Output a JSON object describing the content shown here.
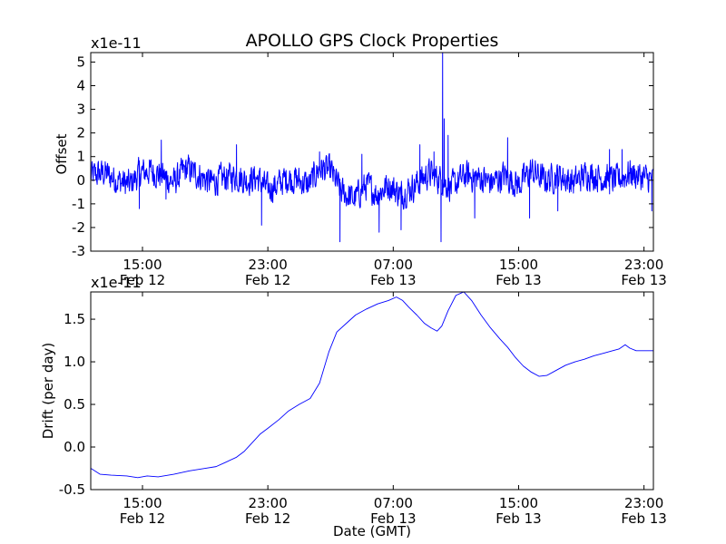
{
  "chart_data": {
    "type": "line",
    "title": "APOLLO GPS Clock Properties",
    "xlabel": "Date (GMT)",
    "x_ticks": [
      {
        "hour": 15,
        "time": "15:00",
        "date": "Feb 12"
      },
      {
        "hour": 23,
        "time": "23:00",
        "date": "Feb 12"
      },
      {
        "hour": 31,
        "time": "07:00",
        "date": "Feb 13"
      },
      {
        "hour": 39,
        "time": "15:00",
        "date": "Feb 13"
      },
      {
        "hour": 47,
        "time": "23:00",
        "date": "Feb 13"
      }
    ],
    "xlim": [
      11.7,
      47.6
    ],
    "panels": [
      {
        "name": "offset",
        "ylabel": "Offset",
        "scale_label": "x1e-11",
        "ylim": [
          -3,
          5.4
        ],
        "y_ticks": [
          -3,
          -2,
          -1,
          0,
          1,
          2,
          3,
          4,
          5
        ],
        "y_tick_labels": [
          "-3",
          "-2",
          "-1",
          "0",
          "1",
          "2",
          "3",
          "4",
          "5"
        ],
        "series": [
          {
            "name": "offset",
            "color": "#0000ff",
            "style": "noisy",
            "noise_amplitude": 0.55,
            "x": [
              11.7,
              12.6,
              13.4,
              14.2,
              14.8,
              15.5,
              16.3,
              17.0,
              17.8,
              18.6,
              19.4,
              20.2,
              20.9,
              21.6,
              22.3,
              23.0,
              23.6,
              24.2,
              24.9,
              25.6,
              26.3,
              27.0,
              27.7,
              28.5,
              29.3,
              30.0,
              30.7,
              31.5,
              32.4,
              33.3,
              34.1,
              34.7,
              35.6,
              36.5,
              37.3,
              38.1,
              39.0,
              39.8,
              40.7,
              41.6,
              42.5,
              43.4,
              44.3,
              45.2,
              46.1,
              47.0,
              47.6
            ],
            "y": [
              0.2,
              0.3,
              0.0,
              -0.2,
              0.3,
              0.4,
              0.2,
              -0.1,
              0.5,
              0.2,
              -0.1,
              0.1,
              0.2,
              0.0,
              0.1,
              -0.4,
              -0.2,
              0.1,
              0.0,
              -0.2,
              0.5,
              0.4,
              -0.5,
              -0.8,
              -0.2,
              -0.6,
              -0.2,
              -0.6,
              -0.2,
              0.3,
              0.0,
              -0.3,
              0.2,
              0.1,
              -0.1,
              0.2,
              -0.2,
              0.4,
              0.0,
              0.2,
              -0.1,
              0.3,
              0.1,
              0.0,
              0.3,
              0.1,
              0.0
            ],
            "spikes": [
              {
                "x": 14.8,
                "y": -1.2
              },
              {
                "x": 16.2,
                "y": 1.7
              },
              {
                "x": 16.5,
                "y": -0.8
              },
              {
                "x": 21.0,
                "y": 1.5
              },
              {
                "x": 22.6,
                "y": -1.9
              },
              {
                "x": 26.3,
                "y": 1.2
              },
              {
                "x": 27.6,
                "y": -2.6
              },
              {
                "x": 29.0,
                "y": 1.1
              },
              {
                "x": 30.1,
                "y": -2.2
              },
              {
                "x": 31.5,
                "y": -2.1
              },
              {
                "x": 32.7,
                "y": 1.5
              },
              {
                "x": 33.6,
                "y": 1.2
              },
              {
                "x": 34.05,
                "y": -2.6
              },
              {
                "x": 34.15,
                "y": 5.4
              },
              {
                "x": 34.25,
                "y": 2.6
              },
              {
                "x": 34.5,
                "y": 1.9
              },
              {
                "x": 36.2,
                "y": -1.6
              },
              {
                "x": 38.3,
                "y": 1.8
              },
              {
                "x": 39.7,
                "y": -1.6
              },
              {
                "x": 41.5,
                "y": -1.3
              },
              {
                "x": 44.8,
                "y": 1.3
              },
              {
                "x": 45.6,
                "y": 1.3
              },
              {
                "x": 47.5,
                "y": -1.3
              }
            ]
          }
        ]
      },
      {
        "name": "drift",
        "ylabel": "Drift (per day)",
        "scale_label": "x1e-11",
        "ylim": [
          -0.5,
          1.82
        ],
        "y_ticks": [
          -0.5,
          0.0,
          0.5,
          1.0,
          1.5
        ],
        "y_tick_labels": [
          "-0.5",
          "0.0",
          "0.5",
          "1.0",
          "1.5"
        ],
        "series": [
          {
            "name": "drift",
            "color": "#0000ff",
            "style": "smooth",
            "x": [
              11.7,
              12.3,
              13.0,
              14.0,
              14.7,
              15.3,
              16.0,
              17.0,
              18.0,
              19.0,
              19.7,
              20.3,
              21.0,
              21.5,
              22.0,
              22.5,
              23.0,
              23.7,
              24.3,
              25.0,
              25.7,
              26.3,
              26.9,
              27.4,
              28.0,
              28.6,
              29.3,
              30.0,
              30.7,
              31.2,
              31.6,
              32.0,
              32.5,
              33.0,
              33.4,
              33.8,
              34.1,
              34.5,
              35.0,
              35.5,
              36.0,
              36.6,
              37.2,
              37.8,
              38.3,
              38.8,
              39.3,
              39.8,
              40.3,
              40.8,
              41.4,
              42.0,
              42.6,
              43.2,
              43.8,
              44.4,
              45.0,
              45.4,
              45.8,
              46.1,
              46.5,
              47.0,
              47.6
            ],
            "y": [
              -0.25,
              -0.32,
              -0.33,
              -0.34,
              -0.36,
              -0.34,
              -0.35,
              -0.32,
              -0.28,
              -0.25,
              -0.23,
              -0.18,
              -0.12,
              -0.05,
              0.05,
              0.15,
              0.22,
              0.32,
              0.42,
              0.5,
              0.57,
              0.75,
              1.12,
              1.35,
              1.45,
              1.55,
              1.62,
              1.68,
              1.72,
              1.76,
              1.72,
              1.64,
              1.55,
              1.45,
              1.4,
              1.36,
              1.42,
              1.6,
              1.78,
              1.82,
              1.72,
              1.55,
              1.4,
              1.27,
              1.17,
              1.05,
              0.95,
              0.88,
              0.83,
              0.84,
              0.9,
              0.96,
              1.0,
              1.03,
              1.07,
              1.1,
              1.13,
              1.15,
              1.2,
              1.16,
              1.13,
              1.13,
              1.13
            ]
          }
        ]
      }
    ]
  }
}
